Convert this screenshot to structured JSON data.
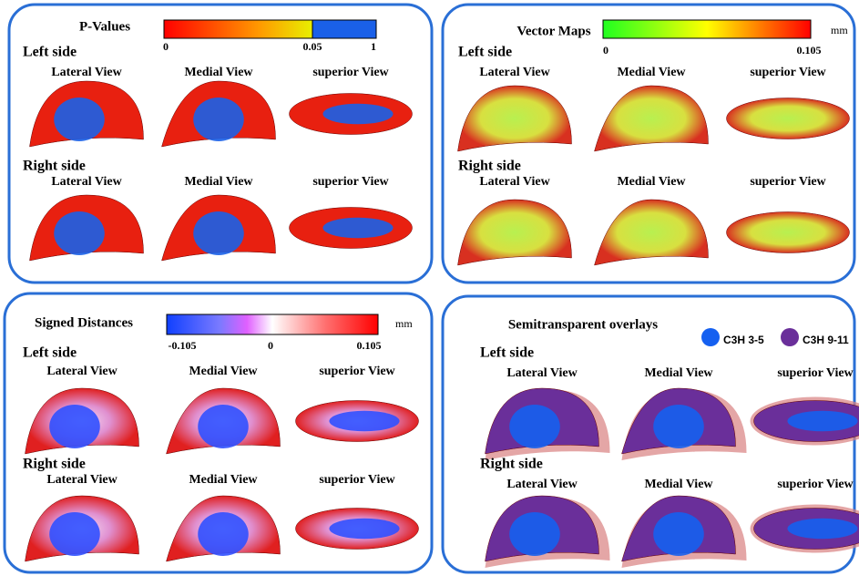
{
  "panels": [
    {
      "title": "P-Values",
      "colorbar_ticks": [
        "0",
        "0.05",
        "1"
      ],
      "sections": [
        {
          "label": "Left side",
          "views": [
            "Lateral View",
            "Medial View",
            "superior View"
          ]
        },
        {
          "label": "Right side",
          "views": [
            "Lateral View",
            "Medial View",
            "superior View"
          ]
        }
      ]
    },
    {
      "title": "Vector Maps",
      "unit": "mm",
      "colorbar_ticks": [
        "0",
        "0.105"
      ],
      "sections": [
        {
          "label": "Left side",
          "views": [
            "Lateral View",
            "Medial View",
            "superior View"
          ]
        },
        {
          "label": "Right side",
          "views": [
            "Lateral View",
            "Medial View",
            "superior View"
          ]
        }
      ]
    },
    {
      "title": "Signed Distances",
      "unit": "mm",
      "colorbar_ticks": [
        "-0.105",
        "0",
        "0.105"
      ],
      "sections": [
        {
          "label": "Left side",
          "views": [
            "Lateral View",
            "Medial View",
            "superior View"
          ]
        },
        {
          "label": "Right side",
          "views": [
            "Lateral View",
            "Medial View",
            "superior View"
          ]
        }
      ]
    },
    {
      "title": "Semitransparent  overlays",
      "legend": [
        "C3H 3-5",
        "C3H 9-11"
      ],
      "sections": [
        {
          "label": "Left side",
          "views": [
            "Lateral View",
            "Medial View",
            "superior View"
          ]
        },
        {
          "label": "Right side",
          "views": [
            "Lateral View",
            "Medial View",
            "superior View"
          ]
        }
      ]
    }
  ]
}
